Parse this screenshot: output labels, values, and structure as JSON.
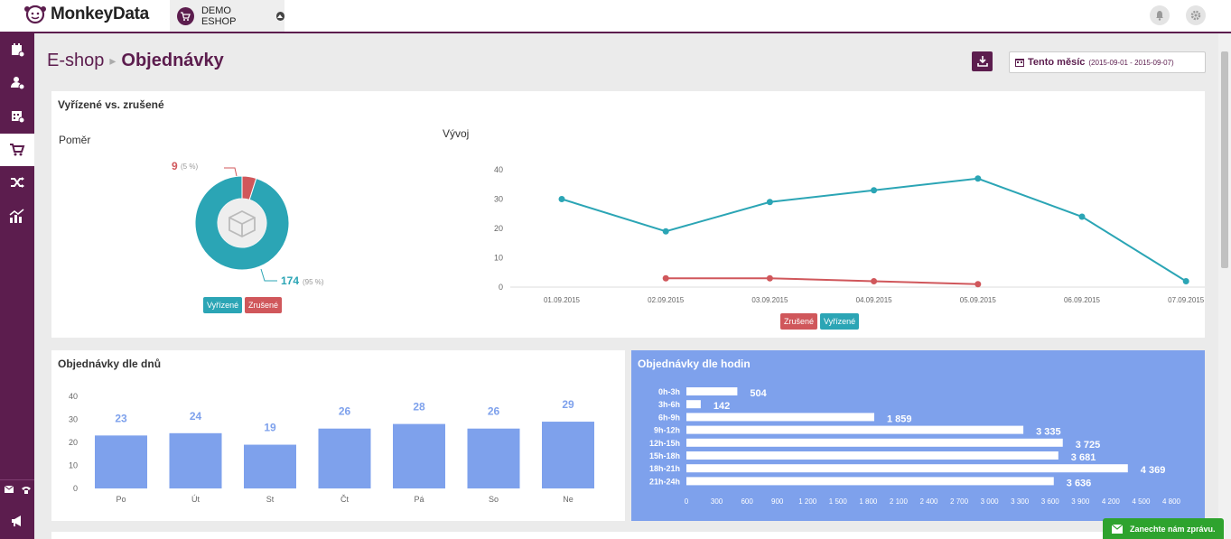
{
  "app": {
    "logo_text": "MonkeyData",
    "shop_name": "DEMO ESHOP"
  },
  "breadcrumb": {
    "parent": "E-shop",
    "current": "Objednávky"
  },
  "date_filter": {
    "label": "Tento měsíc",
    "range": "(2015-09-01 - 2015-09-07)"
  },
  "card1": {
    "title": "Vyřízené vs. zrušené",
    "ratio_title": "Poměr",
    "trend_title": "Vývoj",
    "donut": {
      "cancelled_value": "9",
      "cancelled_pct": "(5 %)",
      "done_value": "174",
      "done_pct": "(95 %)"
    },
    "legend_done": "Vyřízené",
    "legend_cancelled": "Zrušené"
  },
  "card2": {
    "title": "Objednávky dle dnů"
  },
  "card3": {
    "title": "Objednávky dle hodin"
  },
  "chat": {
    "label": "Zanechte nám zprávu."
  },
  "colors": {
    "brand": "#5c1d4e",
    "teal": "#2ba5b5",
    "red": "#d0575b",
    "blue": "#7ea1ec"
  },
  "chart_data": [
    {
      "type": "pie",
      "labels": [
        "Vyřízené",
        "Zrušené"
      ],
      "values": [
        174,
        9
      ]
    },
    {
      "type": "line",
      "x": [
        "01.09.2015",
        "02.09.2015",
        "03.09.2015",
        "04.09.2015",
        "05.09.2015",
        "06.09.2015",
        "07.09.2015"
      ],
      "series": [
        {
          "name": "Vyřízené",
          "values": [
            30,
            19,
            29,
            33,
            37,
            24,
            2
          ]
        },
        {
          "name": "Zrušené",
          "values": [
            null,
            3,
            3,
            2,
            1,
            null,
            null
          ]
        }
      ],
      "yticks": [
        "0",
        "10",
        "20",
        "30",
        "40"
      ],
      "ylim": [
        0,
        40
      ],
      "legend": "bottom"
    },
    {
      "type": "bar",
      "categories": [
        "Po",
        "Út",
        "St",
        "Čt",
        "Pá",
        "So",
        "Ne"
      ],
      "values": [
        23,
        24,
        19,
        26,
        28,
        26,
        29
      ],
      "labels": [
        "23",
        "24",
        "19",
        "26",
        "28",
        "26",
        "29"
      ],
      "yticks": [
        "0",
        "10",
        "20",
        "30",
        "40"
      ],
      "ylim": [
        0,
        40
      ]
    },
    {
      "type": "bar",
      "orientation": "horizontal",
      "categories": [
        "0h-3h",
        "3h-6h",
        "6h-9h",
        "9h-12h",
        "12h-15h",
        "15h-18h",
        "18h-21h",
        "21h-24h"
      ],
      "values": [
        504,
        142,
        1859,
        3335,
        3725,
        3681,
        4369,
        3636
      ],
      "labels": [
        "504",
        "142",
        "1 859",
        "3 335",
        "3 725",
        "3 681",
        "4 369",
        "3 636"
      ],
      "xticks": [
        "0",
        "300",
        "600",
        "900",
        "1 200",
        "1 500",
        "1 800",
        "2 100",
        "2 400",
        "2 700",
        "3 000",
        "3 300",
        "3 600",
        "3 900",
        "4 200",
        "4 500",
        "4 800"
      ],
      "xlim": [
        0,
        4800
      ]
    }
  ]
}
